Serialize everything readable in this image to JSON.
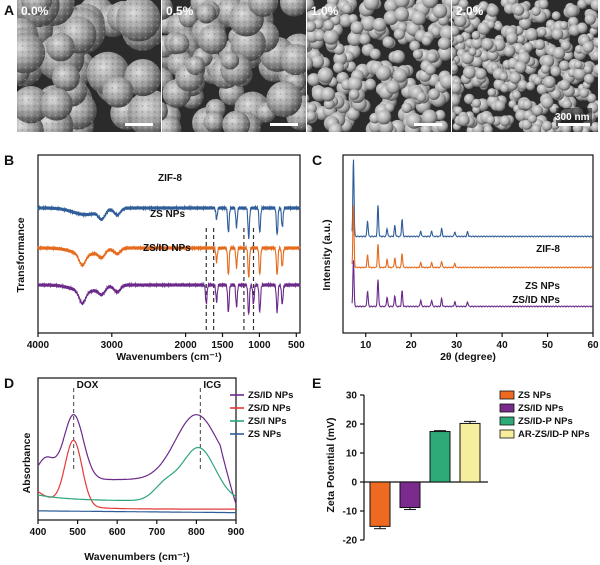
{
  "panel_a": {
    "letter": "A",
    "sem_labels": [
      "0.0%",
      "0.5%",
      "1.0%",
      "2.0%"
    ],
    "scale_bar_label": "300 nm"
  },
  "chart_data": [
    {
      "panel": "B",
      "type": "line",
      "title": "",
      "xlabel": "Wavenumbers (cm⁻¹)",
      "ylabel": "Transformance",
      "xlim": [
        4000,
        450
      ],
      "xticks": [
        4000,
        3000,
        2000,
        1500,
        1000,
        500
      ],
      "series": [
        {
          "name": "ZIF-8",
          "color": "#2f5d9a",
          "offset": 85,
          "dips": [
            [
              3135,
              0.15
            ],
            [
              2925,
              0.12
            ],
            [
              1580,
              0.2
            ],
            [
              1420,
              0.45
            ],
            [
              1310,
              0.35
            ],
            [
              1145,
              0.55
            ],
            [
              995,
              0.45
            ],
            [
              760,
              0.5
            ],
            [
              690,
              0.35
            ],
            [
              420,
              0.6
            ]
          ]
        },
        {
          "name": "ZS NPs",
          "color": "#e56a1c",
          "offset": 45,
          "dips": [
            [
              3400,
              0.2
            ],
            [
              3135,
              0.12
            ],
            [
              2925,
              0.1
            ],
            [
              1580,
              0.25
            ],
            [
              1420,
              0.5
            ],
            [
              1310,
              0.35
            ],
            [
              1145,
              0.55
            ],
            [
              995,
              0.5
            ],
            [
              760,
              0.5
            ],
            [
              690,
              0.35
            ]
          ]
        },
        {
          "name": "ZS/ID NPs",
          "color": "#6b2a8a",
          "offset": 8,
          "dips": [
            [
              3400,
              0.22
            ],
            [
              3135,
              0.12
            ],
            [
              2925,
              0.12
            ],
            [
              1720,
              0.35
            ],
            [
              1580,
              0.3
            ],
            [
              1420,
              0.5
            ],
            [
              1310,
              0.4
            ],
            [
              1145,
              0.55
            ],
            [
              1080,
              0.35
            ],
            [
              995,
              0.5
            ],
            [
              760,
              0.5
            ],
            [
              690,
              0.35
            ]
          ]
        }
      ],
      "markers": [
        1720,
        1620,
        1210,
        1080
      ]
    },
    {
      "panel": "C",
      "type": "line",
      "title": "",
      "xlabel": "2θ (degree)",
      "ylabel": "Intensity (a.u.)",
      "xlim": [
        5,
        60
      ],
      "xticks": [
        10,
        20,
        30,
        40,
        50,
        60
      ],
      "series": [
        {
          "name": "ZIF-8",
          "color": "#2f5d9a",
          "offset": 70,
          "peaks": [
            [
              7.3,
              1.0
            ],
            [
              10.4,
              0.2
            ],
            [
              12.7,
              0.4
            ],
            [
              14.7,
              0.1
            ],
            [
              16.4,
              0.14
            ],
            [
              18.0,
              0.22
            ],
            [
              22.1,
              0.07
            ],
            [
              24.5,
              0.07
            ],
            [
              26.7,
              0.1
            ],
            [
              29.6,
              0.06
            ],
            [
              32.4,
              0.06
            ]
          ]
        },
        {
          "name": "ZS NPs",
          "color": "#e56a1c",
          "offset": 40,
          "peaks": [
            [
              7.3,
              0.8
            ],
            [
              10.4,
              0.16
            ],
            [
              12.7,
              0.3
            ],
            [
              14.7,
              0.1
            ],
            [
              16.4,
              0.12
            ],
            [
              18.0,
              0.18
            ],
            [
              22.1,
              0.06
            ],
            [
              24.5,
              0.06
            ],
            [
              26.7,
              0.08
            ],
            [
              29.6,
              0.05
            ]
          ]
        },
        {
          "name": "ZS/ID NPs",
          "color": "#6b2a8a",
          "offset": 3,
          "peaks": [
            [
              7.3,
              0.6
            ],
            [
              10.4,
              0.2
            ],
            [
              12.7,
              0.35
            ],
            [
              14.7,
              0.12
            ],
            [
              16.4,
              0.14
            ],
            [
              18.0,
              0.2
            ],
            [
              22.1,
              0.08
            ],
            [
              24.5,
              0.08
            ],
            [
              26.7,
              0.1
            ],
            [
              29.6,
              0.06
            ],
            [
              32.4,
              0.06
            ]
          ]
        }
      ]
    },
    {
      "panel": "D",
      "type": "line",
      "title": "",
      "xlabel": "Wavenumbers (cm⁻¹)",
      "ylabel": "Absorbance",
      "xlim": [
        400,
        900
      ],
      "xticks": [
        400,
        500,
        600,
        700,
        800,
        900
      ],
      "annotations": [
        {
          "text": "DOX",
          "x": 490,
          "color": "#e23a3a"
        },
        {
          "text": "ICG",
          "x": 810,
          "color": "#2aa67a"
        }
      ],
      "series": [
        {
          "name": "ZS/ID NPs",
          "color": "#6b2a8a"
        },
        {
          "name": "ZS/D NPs",
          "color": "#e23a3a"
        },
        {
          "name": "ZS/I NPs",
          "color": "#2aa67a"
        },
        {
          "name": "ZS NPs",
          "color": "#2f5d9a"
        }
      ]
    },
    {
      "panel": "E",
      "type": "bar",
      "title": "",
      "xlabel": "",
      "ylabel": "Zeta Potential (mV)",
      "ylim": [
        -20,
        30
      ],
      "yticks": [
        -20,
        -10,
        0,
        10,
        20,
        30
      ],
      "categories": [
        "ZS NPs",
        "ZS/ID NPs",
        "ZS/ID-P NPs",
        "AR-ZS/ID-P NPs"
      ],
      "values": [
        -15.3,
        -8.8,
        17.4,
        20.2
      ],
      "errors": [
        0.8,
        0.7,
        0.3,
        0.7
      ],
      "colors": [
        "#ef6a21",
        "#7b2a8e",
        "#2eaa78",
        "#f6ee9c"
      ]
    }
  ]
}
